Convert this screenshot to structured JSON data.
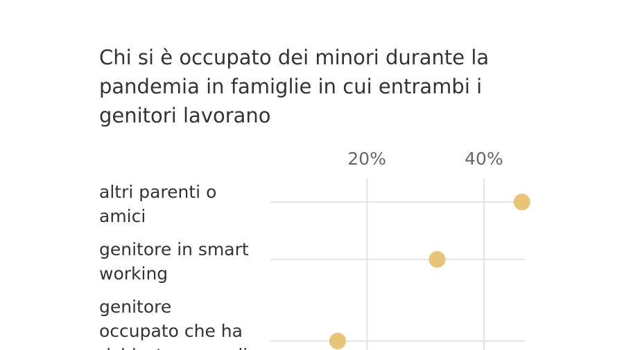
{
  "chart_data": {
    "type": "scatter",
    "title": "Chi si è occupato dei minori durante la pandemia in famiglie in cui entrambi i genitori lavorano",
    "xlabel": "",
    "ylabel": "",
    "x_ticks": [
      "20%",
      "40%"
    ],
    "x_tick_values": [
      20,
      40
    ],
    "xlim": [
      3.5,
      47
    ],
    "grid": true,
    "categories": [
      [
        "altri parenti o",
        "amici"
      ],
      [
        "genitore in smart",
        "working"
      ],
      [
        "genitore",
        "occupato che ha",
        "richiesto congedi"
      ]
    ],
    "values": [
      46.5,
      32,
      15
    ],
    "point_color": "#e8c478"
  }
}
